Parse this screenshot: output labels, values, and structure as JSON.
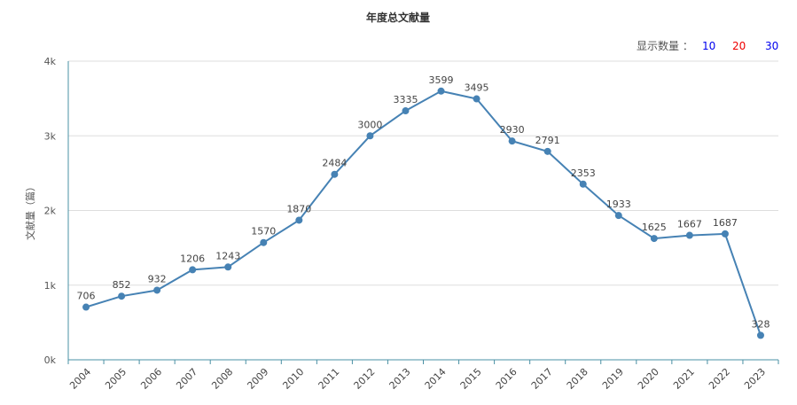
{
  "chart_data": {
    "type": "line",
    "title": "年度总文献量",
    "xlabel": "",
    "ylabel": "文献量（篇）",
    "categories": [
      "2004",
      "2005",
      "2006",
      "2007",
      "2008",
      "2009",
      "2010",
      "2011",
      "2012",
      "2013",
      "2014",
      "2015",
      "2016",
      "2017",
      "2018",
      "2019",
      "2020",
      "2021",
      "2022",
      "2023"
    ],
    "values": [
      706,
      852,
      932,
      1206,
      1243,
      1570,
      1870,
      2484,
      3000,
      3335,
      3599,
      3495,
      2930,
      2791,
      2353,
      1933,
      1625,
      1667,
      1687,
      328
    ],
    "ylim": [
      0,
      4000
    ],
    "yticks": [
      {
        "value": 0,
        "label": "0k"
      },
      {
        "value": 1000,
        "label": "1k"
      },
      {
        "value": 2000,
        "label": "2k"
      },
      {
        "value": 3000,
        "label": "3k"
      },
      {
        "value": 4000,
        "label": "4k"
      }
    ],
    "grid": true,
    "line_color": "#4682b4"
  },
  "display_count": {
    "label": "显示数量 ：",
    "options": [
      {
        "label": "10",
        "color": "#0000ee"
      },
      {
        "label": "20",
        "color": "#ee0000"
      },
      {
        "label": "30",
        "color": "#0000ee"
      }
    ]
  }
}
